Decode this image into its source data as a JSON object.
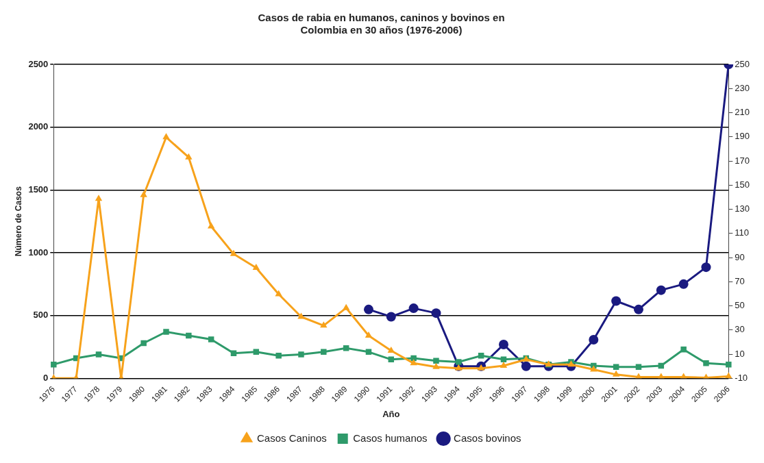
{
  "chart_data": {
    "type": "line",
    "title": "Casos de rabia en humanos, caninos y bovinos en\nColombia en 30 años (1976-2006)",
    "xlabel": "Año",
    "ylabel": "Número de Casos",
    "categories": [
      "1976",
      "1977",
      "1978",
      "1979",
      "1980",
      "1981",
      "1982",
      "1983",
      "1984",
      "1985",
      "1986",
      "1987",
      "1988",
      "1989",
      "1990",
      "1991",
      "1992",
      "1993",
      "1994",
      "1995",
      "1996",
      "1997",
      "1998",
      "1999",
      "2000",
      "2001",
      "2002",
      "2003",
      "2004",
      "2005",
      "2006"
    ],
    "series": [
      {
        "name": "Casos Caninos",
        "color": "#f7a21b",
        "marker": "triangle",
        "values": [
          0,
          0,
          1430,
          0,
          1460,
          1920,
          1760,
          1210,
          990,
          880,
          670,
          490,
          420,
          560,
          340,
          220,
          120,
          90,
          80,
          80,
          100,
          150,
          110,
          110,
          70,
          30,
          10,
          10,
          10,
          5,
          15
        ]
      },
      {
        "name": "Casos humanos",
        "color": "#2e9a6a",
        "marker": "square",
        "values": [
          110,
          160,
          190,
          160,
          280,
          370,
          340,
          310,
          200,
          210,
          180,
          190,
          210,
          240,
          210,
          150,
          160,
          140,
          130,
          180,
          150,
          160,
          110,
          130,
          100,
          90,
          90,
          100,
          230,
          120,
          110
        ]
      },
      {
        "name": "Casos bovinos",
        "color": "#1a1a80",
        "marker": "circle",
        "axis": "y2",
        "values": [
          null,
          null,
          null,
          null,
          null,
          null,
          null,
          null,
          null,
          null,
          null,
          null,
          null,
          null,
          47,
          41,
          48,
          44,
          0,
          0,
          18,
          0,
          0,
          0,
          22,
          54,
          47,
          63,
          68,
          82,
          250
        ]
      }
    ],
    "ylim": [
      0,
      2500
    ],
    "yticks": [
      0,
      500,
      1000,
      1500,
      2000,
      2500
    ],
    "y2lim": [
      -10,
      250
    ],
    "y2ticks": [
      -10,
      10,
      30,
      50,
      70,
      90,
      110,
      130,
      150,
      170,
      190,
      210,
      230,
      250
    ],
    "grid": "y",
    "legend": "bottom"
  }
}
